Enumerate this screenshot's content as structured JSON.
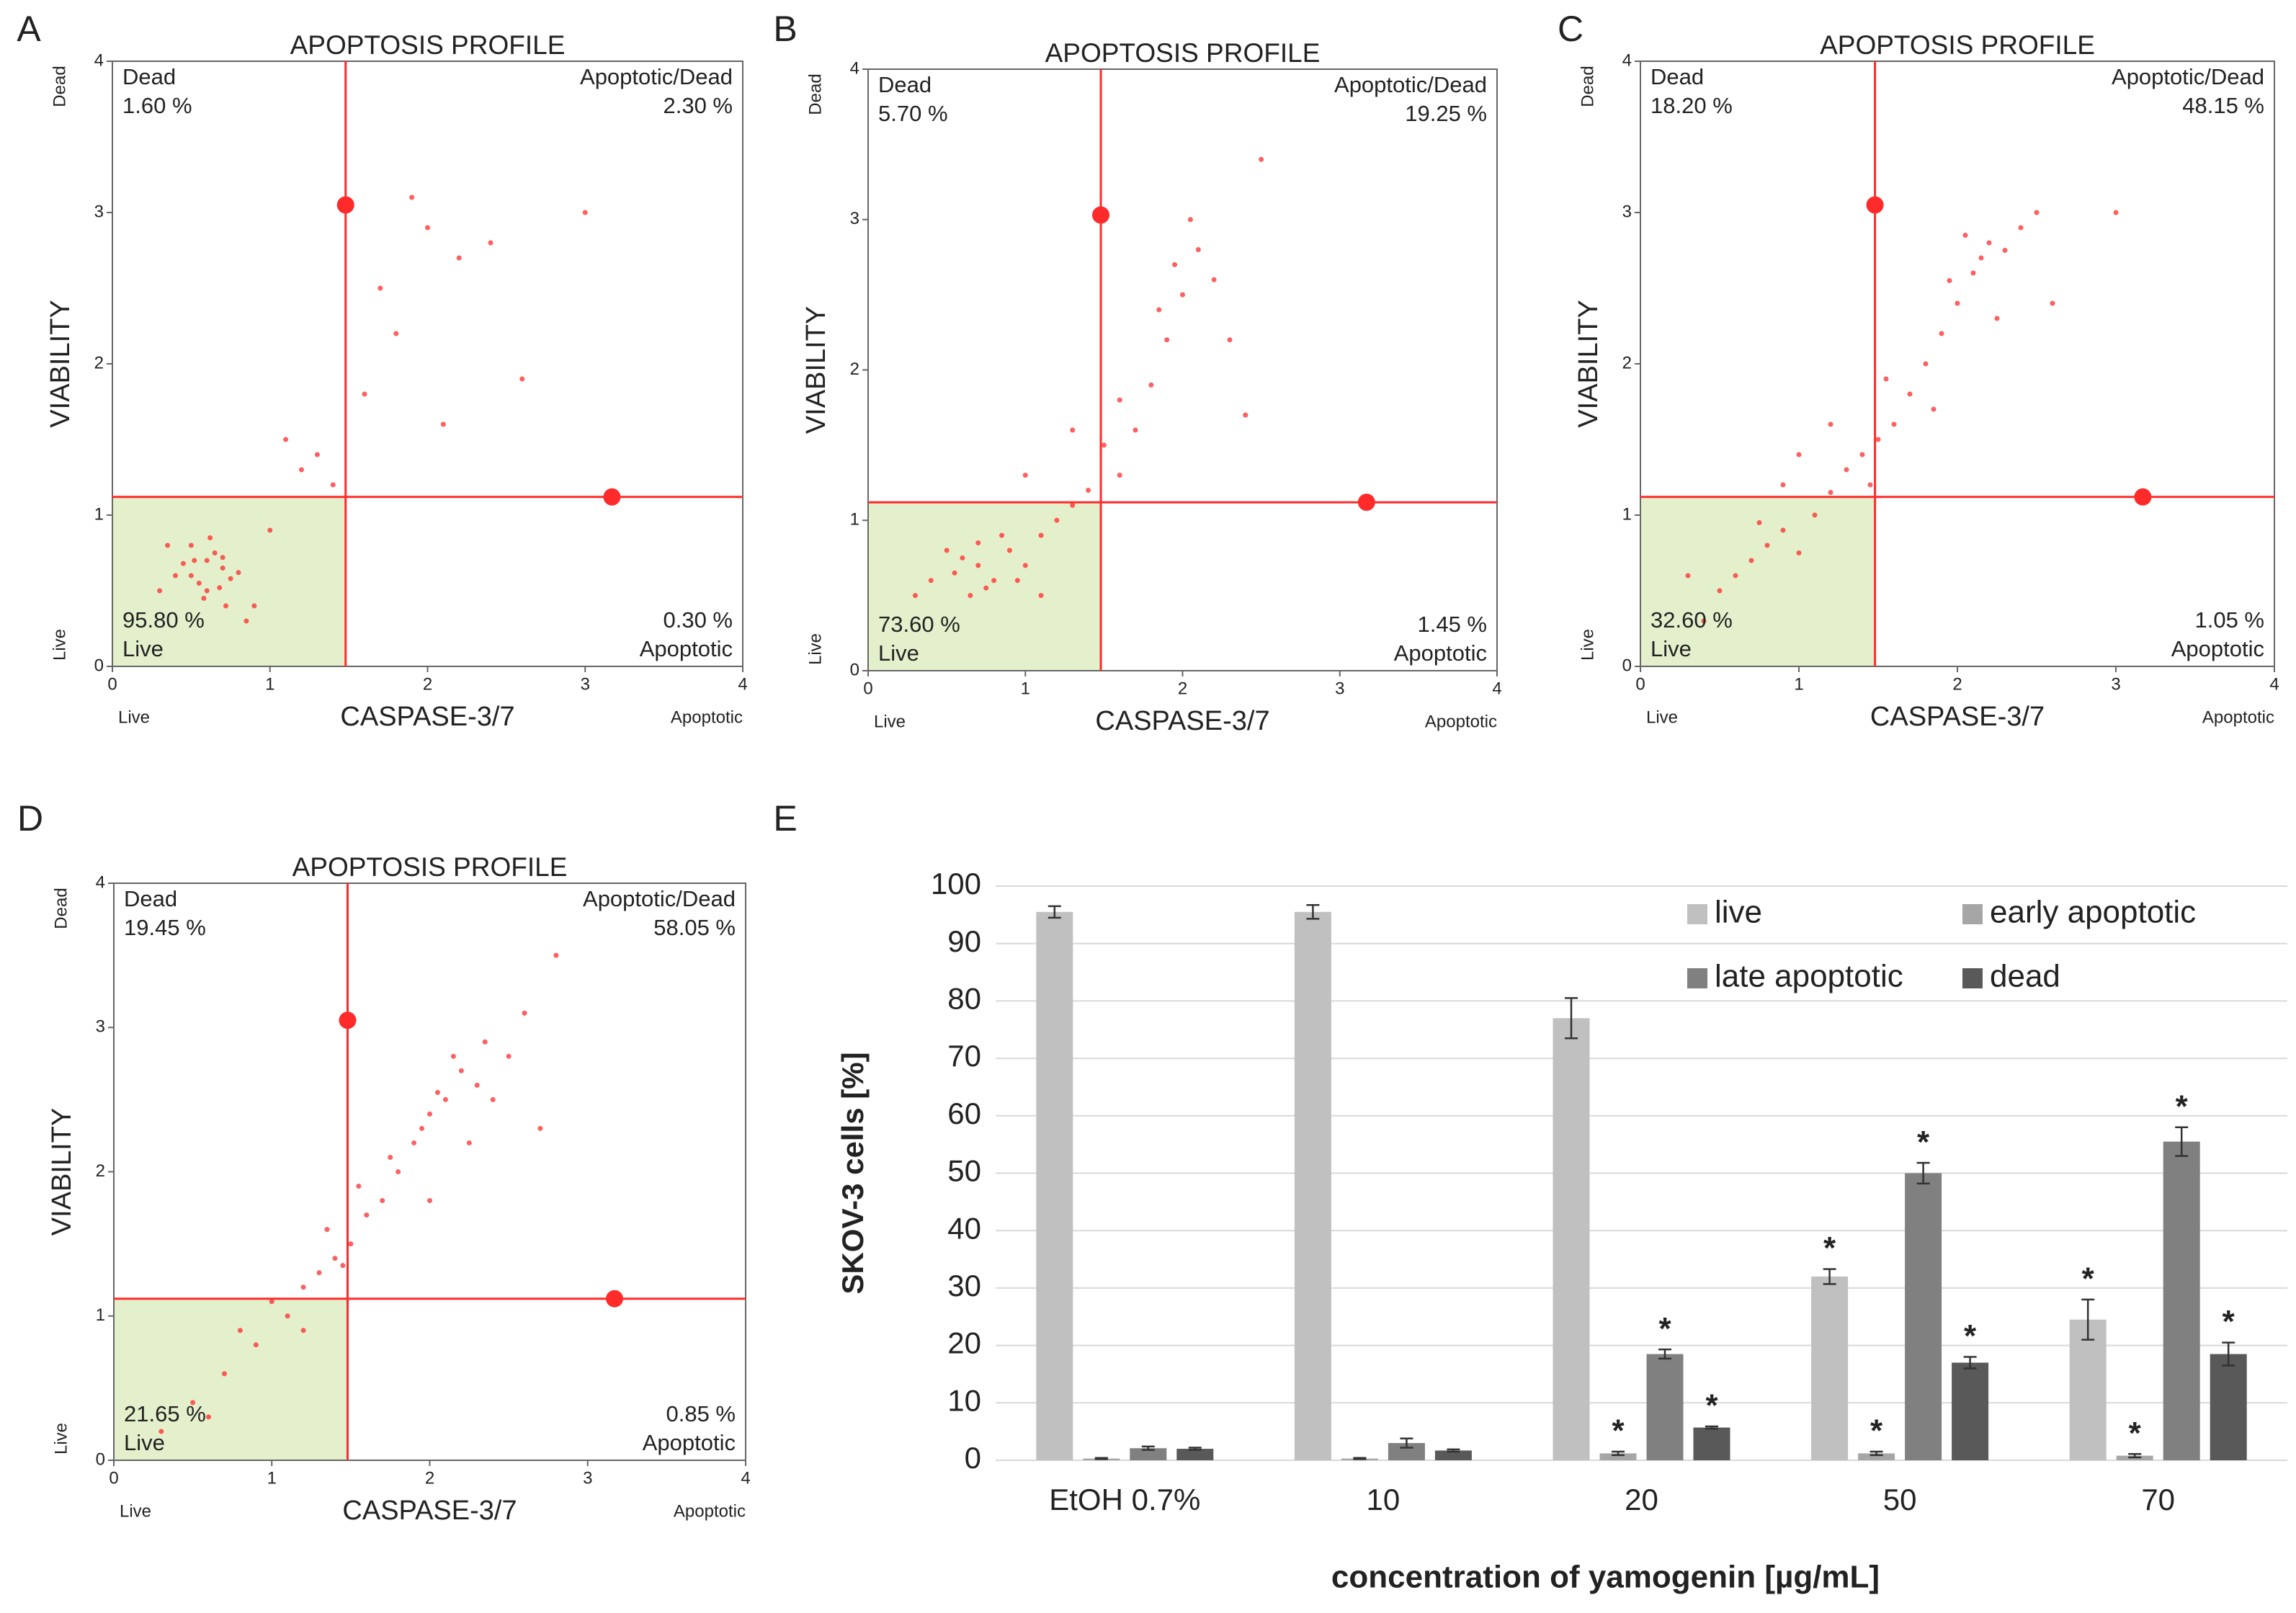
{
  "chart_data": [
    {
      "type": "scatter",
      "panel": "A",
      "title": "APOPTOSIS PROFILE",
      "x_label": "CASPASE-3/7",
      "y_label": "VIABILITY",
      "x_end_labels": [
        "Live",
        "Apoptotic"
      ],
      "y_end_labels": [
        "Live",
        "Dead"
      ],
      "xlim": [
        0,
        4
      ],
      "ylim": [
        0,
        4
      ],
      "xticks": [
        0,
        1,
        2,
        3,
        4
      ],
      "yticks": [
        0,
        1,
        2,
        3,
        4
      ],
      "color": "#ff2a2a",
      "gate": {
        "x": 1.48,
        "y": 1.12,
        "handles": [
          [
            1.48,
            3.05
          ],
          [
            3.17,
            1.12
          ]
        ]
      },
      "quadrants": {
        "top_left": [
          "Dead",
          "1.60 %"
        ],
        "top_right": [
          "Apoptotic/Dead",
          "2.30 %"
        ],
        "bottom_left": [
          "95.80 %",
          "Live"
        ],
        "bottom_right": [
          "0.30 %",
          "Apoptotic"
        ]
      },
      "points": [
        [
          0.5,
          0.6
        ],
        [
          0.6,
          0.7
        ],
        [
          0.7,
          0.65
        ],
        [
          0.55,
          0.55
        ],
        [
          0.65,
          0.75
        ],
        [
          0.45,
          0.68
        ],
        [
          0.75,
          0.58
        ],
        [
          0.6,
          0.5
        ],
        [
          0.5,
          0.8
        ],
        [
          0.7,
          0.72
        ],
        [
          0.8,
          0.62
        ],
        [
          0.4,
          0.6
        ],
        [
          0.62,
          0.85
        ],
        [
          0.58,
          0.45
        ],
        [
          0.68,
          0.52
        ],
        [
          0.52,
          0.7
        ],
        [
          0.9,
          0.4
        ],
        [
          0.35,
          0.8
        ],
        [
          0.3,
          0.5
        ],
        [
          1.0,
          0.9
        ],
        [
          1.2,
          1.3
        ],
        [
          1.1,
          1.5
        ],
        [
          1.3,
          1.4
        ],
        [
          1.6,
          1.8
        ],
        [
          1.7,
          2.5
        ],
        [
          2.0,
          2.9
        ],
        [
          2.1,
          1.6
        ],
        [
          2.4,
          2.8
        ],
        [
          1.8,
          2.2
        ],
        [
          2.6,
          1.9
        ],
        [
          1.9,
          3.1
        ],
        [
          2.2,
          2.7
        ],
        [
          3.0,
          3.0
        ],
        [
          1.4,
          1.2
        ],
        [
          0.85,
          0.3
        ],
        [
          0.72,
          0.4
        ]
      ]
    },
    {
      "type": "scatter",
      "panel": "B",
      "title": "APOPTOSIS PROFILE",
      "x_label": "CASPASE-3/7",
      "y_label": "VIABILITY",
      "x_end_labels": [
        "Live",
        "Apoptotic"
      ],
      "y_end_labels": [
        "Live",
        "Dead"
      ],
      "xlim": [
        0,
        4
      ],
      "ylim": [
        0,
        4
      ],
      "xticks": [
        0,
        1,
        2,
        3,
        4
      ],
      "yticks": [
        0,
        1,
        2,
        3,
        4
      ],
      "color": "#ff2a2a",
      "gate": {
        "x": 1.48,
        "y": 1.12,
        "handles": [
          [
            1.48,
            3.03
          ],
          [
            3.17,
            1.12
          ]
        ]
      },
      "quadrants": {
        "top_left": [
          "Dead",
          "5.70 %"
        ],
        "top_right": [
          "Apoptotic/Dead",
          "19.25 %"
        ],
        "bottom_left": [
          "73.60 %",
          "Live"
        ],
        "bottom_right": [
          "1.45 %",
          "Apoptotic"
        ]
      },
      "points": [
        [
          0.7,
          0.7
        ],
        [
          0.8,
          0.6
        ],
        [
          0.6,
          0.75
        ],
        [
          0.9,
          0.8
        ],
        [
          0.75,
          0.55
        ],
        [
          0.55,
          0.65
        ],
        [
          0.85,
          0.9
        ],
        [
          0.65,
          0.5
        ],
        [
          1.0,
          0.7
        ],
        [
          0.5,
          0.8
        ],
        [
          0.95,
          0.6
        ],
        [
          0.7,
          0.85
        ],
        [
          0.4,
          0.6
        ],
        [
          1.1,
          0.9
        ],
        [
          1.2,
          1.0
        ],
        [
          1.3,
          1.1
        ],
        [
          1.4,
          1.2
        ],
        [
          1.6,
          1.3
        ],
        [
          1.5,
          1.5
        ],
        [
          1.7,
          1.6
        ],
        [
          1.8,
          1.9
        ],
        [
          1.9,
          2.2
        ],
        [
          2.0,
          2.5
        ],
        [
          1.95,
          2.7
        ],
        [
          2.1,
          2.8
        ],
        [
          2.2,
          2.6
        ],
        [
          2.05,
          3.0
        ],
        [
          1.85,
          2.4
        ],
        [
          2.3,
          2.2
        ],
        [
          1.6,
          1.8
        ],
        [
          2.4,
          1.7
        ],
        [
          1.3,
          1.6
        ],
        [
          2.5,
          3.4
        ],
        [
          1.0,
          1.3
        ],
        [
          0.3,
          0.5
        ],
        [
          1.1,
          0.5
        ]
      ]
    },
    {
      "type": "scatter",
      "panel": "C",
      "title": "APOPTOSIS PROFILE",
      "x_label": "CASPASE-3/7",
      "y_label": "VIABILITY",
      "x_end_labels": [
        "Live",
        "Apoptotic"
      ],
      "y_end_labels": [
        "Live",
        "Dead"
      ],
      "xlim": [
        0,
        4
      ],
      "ylim": [
        0,
        4
      ],
      "xticks": [
        0,
        1,
        2,
        3,
        4
      ],
      "yticks": [
        0,
        1,
        2,
        3,
        4
      ],
      "color": "#ff2a2a",
      "gate": {
        "x": 1.48,
        "y": 1.12,
        "handles": [
          [
            1.48,
            3.05
          ],
          [
            3.17,
            1.12
          ]
        ]
      },
      "quadrants": {
        "top_left": [
          "Dead",
          "18.20 %"
        ],
        "top_right": [
          "Apoptotic/Dead",
          "48.15 %"
        ],
        "bottom_left": [
          "32.60 %",
          "Live"
        ],
        "bottom_right": [
          "1.05 %",
          "Apoptotic"
        ]
      },
      "points": [
        [
          0.7,
          0.7
        ],
        [
          0.8,
          0.8
        ],
        [
          0.9,
          0.9
        ],
        [
          0.6,
          0.6
        ],
        [
          1.0,
          0.75
        ],
        [
          0.75,
          0.95
        ],
        [
          1.1,
          1.0
        ],
        [
          0.5,
          0.5
        ],
        [
          0.4,
          0.3
        ],
        [
          1.2,
          1.15
        ],
        [
          1.3,
          1.3
        ],
        [
          1.4,
          1.4
        ],
        [
          1.5,
          1.5
        ],
        [
          1.45,
          1.2
        ],
        [
          1.6,
          1.6
        ],
        [
          1.7,
          1.8
        ],
        [
          1.8,
          2.0
        ],
        [
          1.9,
          2.2
        ],
        [
          2.0,
          2.4
        ],
        [
          2.1,
          2.6
        ],
        [
          2.2,
          2.8
        ],
        [
          2.15,
          2.7
        ],
        [
          2.05,
          2.85
        ],
        [
          2.3,
          2.75
        ],
        [
          1.95,
          2.55
        ],
        [
          2.4,
          2.9
        ],
        [
          2.5,
          3.0
        ],
        [
          1.85,
          1.7
        ],
        [
          2.25,
          2.3
        ],
        [
          1.55,
          1.9
        ],
        [
          1.2,
          1.6
        ],
        [
          1.0,
          1.4
        ],
        [
          2.6,
          2.4
        ],
        [
          3.0,
          3.0
        ],
        [
          0.3,
          0.6
        ],
        [
          0.9,
          1.2
        ]
      ]
    },
    {
      "type": "scatter",
      "panel": "D",
      "title": "APOPTOSIS PROFILE",
      "x_label": "CASPASE-3/7",
      "y_label": "VIABILITY",
      "x_end_labels": [
        "Live",
        "Apoptotic"
      ],
      "y_end_labels": [
        "Live",
        "Dead"
      ],
      "xlim": [
        0,
        4
      ],
      "ylim": [
        0,
        4
      ],
      "xticks": [
        0,
        1,
        2,
        3,
        4
      ],
      "yticks": [
        0,
        1,
        2,
        3,
        4
      ],
      "color": "#ff2a2a",
      "gate": {
        "x": 1.48,
        "y": 1.12,
        "handles": [
          [
            1.48,
            3.05
          ],
          [
            3.17,
            1.12
          ]
        ]
      },
      "quadrants": {
        "top_left": [
          "Dead",
          "19.45 %"
        ],
        "top_right": [
          "Apoptotic/Dead",
          "58.05 %"
        ],
        "bottom_left": [
          "21.65 %",
          "Live"
        ],
        "bottom_right": [
          "0.85 %",
          "Apoptotic"
        ]
      },
      "points": [
        [
          0.5,
          0.4
        ],
        [
          0.7,
          0.6
        ],
        [
          0.8,
          0.9
        ],
        [
          0.9,
          0.8
        ],
        [
          1.0,
          1.1
        ],
        [
          1.1,
          1.0
        ],
        [
          1.2,
          1.2
        ],
        [
          1.3,
          1.3
        ],
        [
          1.4,
          1.4
        ],
        [
          1.5,
          1.5
        ],
        [
          1.45,
          1.35
        ],
        [
          1.6,
          1.7
        ],
        [
          1.7,
          1.8
        ],
        [
          1.8,
          2.0
        ],
        [
          1.9,
          2.2
        ],
        [
          2.0,
          2.4
        ],
        [
          2.1,
          2.5
        ],
        [
          2.2,
          2.7
        ],
        [
          2.3,
          2.6
        ],
        [
          2.15,
          2.8
        ],
        [
          2.05,
          2.55
        ],
        [
          2.35,
          2.9
        ],
        [
          2.4,
          2.5
        ],
        [
          1.95,
          2.3
        ],
        [
          2.5,
          2.8
        ],
        [
          2.6,
          3.1
        ],
        [
          1.75,
          2.1
        ],
        [
          1.55,
          1.9
        ],
        [
          2.0,
          1.8
        ],
        [
          2.7,
          2.3
        ],
        [
          1.2,
          0.9
        ],
        [
          0.6,
          0.3
        ],
        [
          0.3,
          0.2
        ],
        [
          1.35,
          1.6
        ],
        [
          2.8,
          3.5
        ],
        [
          2.25,
          2.2
        ]
      ]
    },
    {
      "type": "bar",
      "panel": "E",
      "y_label": "SKOV-3 cells [%]",
      "x_label": "concentration of yamogenin [µg/mL]",
      "categories": [
        "EtOH 0.7%",
        "10",
        "20",
        "50",
        "70"
      ],
      "ylim": [
        0,
        100
      ],
      "yticks": [
        0,
        10,
        20,
        30,
        40,
        50,
        60,
        70,
        80,
        90,
        100
      ],
      "grid": true,
      "legend": "upper right",
      "series": [
        {
          "name": "live",
          "color": "#c0c0c0",
          "values": [
            95.5,
            95.5,
            77,
            32,
            24.5
          ],
          "errors": [
            1,
            1.2,
            3.5,
            1.3,
            3.5
          ],
          "significance": [
            null,
            null,
            null,
            "*",
            "*"
          ]
        },
        {
          "name": "early apoptotic",
          "color": "#a6a6a6",
          "values": [
            0.3,
            0.3,
            1.2,
            1.2,
            0.8
          ],
          "errors": [
            0.1,
            0.1,
            0.3,
            0.3,
            0.3
          ],
          "significance": [
            null,
            null,
            "*",
            "*",
            "*"
          ]
        },
        {
          "name": "late apoptotic",
          "color": "#808080",
          "values": [
            2.1,
            3,
            18.5,
            50,
            55.5
          ],
          "errors": [
            0.3,
            0.8,
            0.8,
            1.8,
            2.5
          ],
          "significance": [
            null,
            null,
            "*",
            "*",
            "*"
          ]
        },
        {
          "name": "dead",
          "color": "#595959",
          "values": [
            2,
            1.7,
            5.7,
            17,
            18.5
          ],
          "errors": [
            0.2,
            0.2,
            0.2,
            1,
            2
          ],
          "significance": [
            null,
            null,
            "*",
            "*",
            "*"
          ]
        }
      ]
    }
  ]
}
